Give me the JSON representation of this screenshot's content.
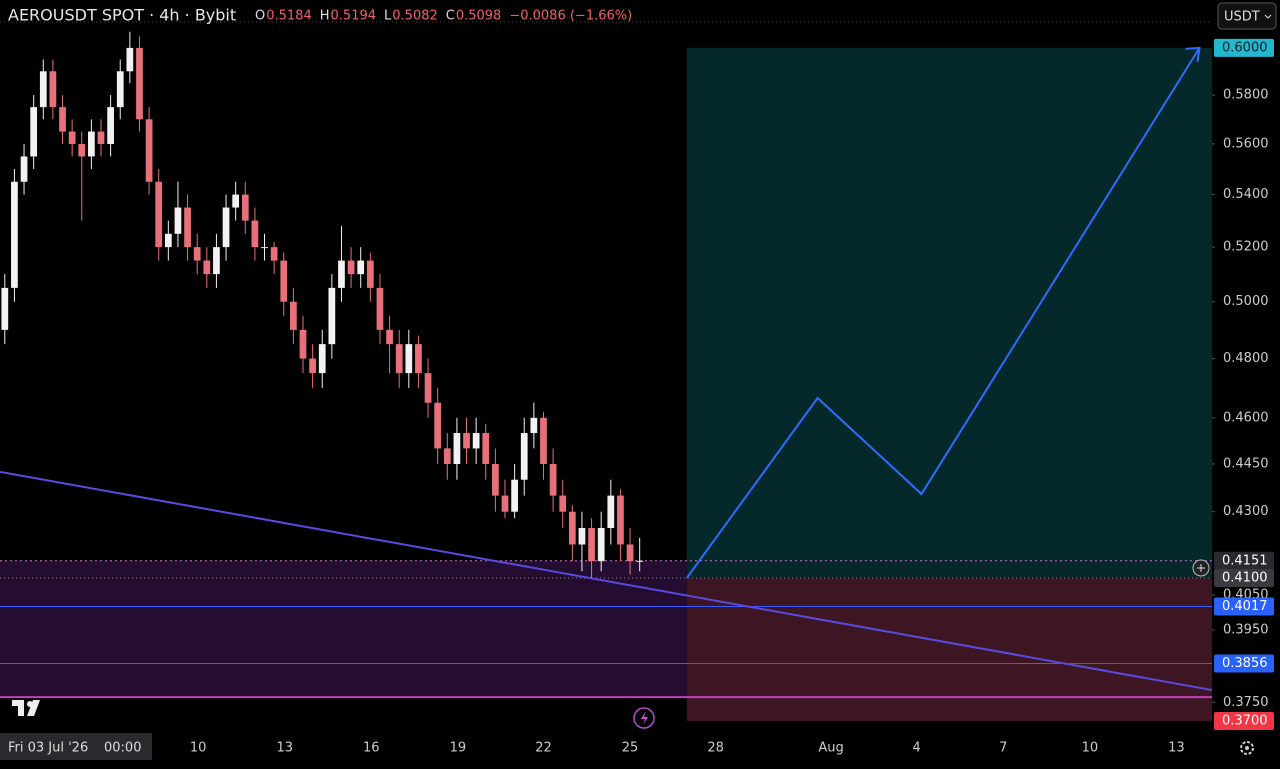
{
  "chart_data": {
    "type": "candlestick",
    "symbol": "AEROUSDT SPOT · 4h · Bybit",
    "ohlc_labels": [
      "O",
      "H",
      "L",
      "C"
    ],
    "ohlc_values": [
      "0.5184",
      "0.5194",
      "0.5082",
      "0.5098"
    ],
    "change": "−0.0086 (−1.66%)",
    "currency": "USDT",
    "date_label": "Fri 03 Jul '26",
    "time_label": "00:00",
    "log_scale": true,
    "up_color": "#f2f2f2",
    "down_color": "#e8707a",
    "ohlc": [
      [
        0.49,
        0.51,
        0.485,
        0.505
      ],
      [
        0.505,
        0.55,
        0.5,
        0.545
      ],
      [
        0.545,
        0.56,
        0.54,
        0.555
      ],
      [
        0.555,
        0.58,
        0.55,
        0.575
      ],
      [
        0.575,
        0.595,
        0.57,
        0.59
      ],
      [
        0.59,
        0.595,
        0.57,
        0.575
      ],
      [
        0.575,
        0.58,
        0.56,
        0.565
      ],
      [
        0.565,
        0.57,
        0.555,
        0.56
      ],
      [
        0.56,
        0.565,
        0.53,
        0.555
      ],
      [
        0.555,
        0.57,
        0.55,
        0.565
      ],
      [
        0.565,
        0.57,
        0.555,
        0.56
      ],
      [
        0.56,
        0.58,
        0.555,
        0.575
      ],
      [
        0.575,
        0.595,
        0.57,
        0.59
      ],
      [
        0.59,
        0.607,
        0.585,
        0.6
      ],
      [
        0.6,
        0.605,
        0.565,
        0.57
      ],
      [
        0.57,
        0.575,
        0.54,
        0.545
      ],
      [
        0.545,
        0.55,
        0.515,
        0.52
      ],
      [
        0.52,
        0.53,
        0.515,
        0.525
      ],
      [
        0.525,
        0.545,
        0.52,
        0.535
      ],
      [
        0.535,
        0.54,
        0.515,
        0.52
      ],
      [
        0.52,
        0.525,
        0.51,
        0.515
      ],
      [
        0.515,
        0.52,
        0.505,
        0.51
      ],
      [
        0.51,
        0.525,
        0.505,
        0.52
      ],
      [
        0.52,
        0.54,
        0.515,
        0.535
      ],
      [
        0.535,
        0.545,
        0.53,
        0.54
      ],
      [
        0.54,
        0.545,
        0.525,
        0.53
      ],
      [
        0.53,
        0.535,
        0.515,
        0.52
      ],
      [
        0.52,
        0.525,
        0.515,
        0.52
      ],
      [
        0.52,
        0.522,
        0.51,
        0.515
      ],
      [
        0.515,
        0.518,
        0.495,
        0.5
      ],
      [
        0.5,
        0.505,
        0.485,
        0.49
      ],
      [
        0.49,
        0.495,
        0.475,
        0.48
      ],
      [
        0.48,
        0.485,
        0.47,
        0.475
      ],
      [
        0.475,
        0.49,
        0.47,
        0.485
      ],
      [
        0.485,
        0.51,
        0.48,
        0.505
      ],
      [
        0.505,
        0.528,
        0.5,
        0.515
      ],
      [
        0.515,
        0.52,
        0.505,
        0.51
      ],
      [
        0.51,
        0.52,
        0.505,
        0.515
      ],
      [
        0.515,
        0.518,
        0.5,
        0.505
      ],
      [
        0.505,
        0.51,
        0.485,
        0.49
      ],
      [
        0.49,
        0.495,
        0.475,
        0.485
      ],
      [
        0.485,
        0.49,
        0.47,
        0.475
      ],
      [
        0.475,
        0.49,
        0.47,
        0.485
      ],
      [
        0.485,
        0.488,
        0.47,
        0.475
      ],
      [
        0.475,
        0.48,
        0.46,
        0.465
      ],
      [
        0.465,
        0.47,
        0.445,
        0.45
      ],
      [
        0.45,
        0.455,
        0.44,
        0.445
      ],
      [
        0.445,
        0.46,
        0.44,
        0.455
      ],
      [
        0.455,
        0.46,
        0.445,
        0.45
      ],
      [
        0.45,
        0.46,
        0.445,
        0.455
      ],
      [
        0.455,
        0.458,
        0.44,
        0.445
      ],
      [
        0.445,
        0.45,
        0.43,
        0.435
      ],
      [
        0.435,
        0.44,
        0.428,
        0.43
      ],
      [
        0.43,
        0.445,
        0.428,
        0.44
      ],
      [
        0.44,
        0.46,
        0.435,
        0.455
      ],
      [
        0.455,
        0.465,
        0.45,
        0.46
      ],
      [
        0.46,
        0.462,
        0.44,
        0.445
      ],
      [
        0.445,
        0.45,
        0.43,
        0.435
      ],
      [
        0.435,
        0.44,
        0.425,
        0.43
      ],
      [
        0.43,
        0.432,
        0.415,
        0.42
      ],
      [
        0.42,
        0.43,
        0.412,
        0.425
      ],
      [
        0.425,
        0.428,
        0.41,
        0.415
      ],
      [
        0.415,
        0.43,
        0.412,
        0.425
      ],
      [
        0.425,
        0.44,
        0.42,
        0.435
      ],
      [
        0.435,
        0.437,
        0.415,
        0.42
      ],
      [
        0.42,
        0.425,
        0.411,
        0.415
      ],
      [
        0.415,
        0.422,
        0.412,
        0.4151
      ]
    ],
    "xlim": [
      0,
      126
    ],
    "xticks": [
      {
        "value": 20.6,
        "label": "10"
      },
      {
        "value": 29.6,
        "label": "13"
      },
      {
        "value": 38.6,
        "label": "16"
      },
      {
        "value": 47.6,
        "label": "19"
      },
      {
        "value": 56.5,
        "label": "22"
      },
      {
        "value": 65.5,
        "label": "25"
      },
      {
        "value": 74.4,
        "label": "28"
      },
      {
        "value": 86.4,
        "label": "Aug"
      },
      {
        "value": 95.3,
        "label": "4"
      },
      {
        "value": 104.3,
        "label": "7"
      },
      {
        "value": 113.3,
        "label": "10"
      },
      {
        "value": 122.3,
        "label": "13"
      }
    ],
    "ylim": [
      0.3676,
      0.621
    ],
    "yticks": [
      {
        "value": 0.58,
        "label": "0.5800"
      },
      {
        "value": 0.56,
        "label": "0.5600"
      },
      {
        "value": 0.54,
        "label": "0.5400"
      },
      {
        "value": 0.52,
        "label": "0.5200"
      },
      {
        "value": 0.5,
        "label": "0.5000"
      },
      {
        "value": 0.48,
        "label": "0.4800"
      },
      {
        "value": 0.46,
        "label": "0.4600"
      },
      {
        "value": 0.445,
        "label": "0.4450"
      },
      {
        "value": 0.43,
        "label": "0.4300"
      },
      {
        "value": 0.405,
        "label": "0.4050"
      },
      {
        "value": 0.395,
        "label": "0.3950"
      },
      {
        "value": 0.375,
        "label": "0.3750"
      }
    ],
    "price_labels": [
      {
        "value": 0.6,
        "label": "0.6000",
        "color": "#22b8cf"
      },
      {
        "value": 0.4151,
        "label": "0.4151",
        "color": "#2a2a2e"
      },
      {
        "value": 0.41,
        "label": "0.4100",
        "color": "#3a3a40"
      },
      {
        "value": 0.4017,
        "label": "0.4017",
        "color": "#2962ff"
      },
      {
        "value": 0.3856,
        "label": "0.3856",
        "color": "#2962ff"
      },
      {
        "value": 0.37,
        "label": "0.3700",
        "color": "#f23645"
      }
    ],
    "position_start": 71.4,
    "support_zone": [
      0.4151,
      0.3764
    ],
    "trendline": [
      0.4425,
      0.3783
    ],
    "projection": {
      "x": [
        71.4,
        85.0,
        95.8,
        124.7
      ],
      "y": [
        0.41,
        0.4666,
        0.4355,
        0.6
      ]
    }
  }
}
